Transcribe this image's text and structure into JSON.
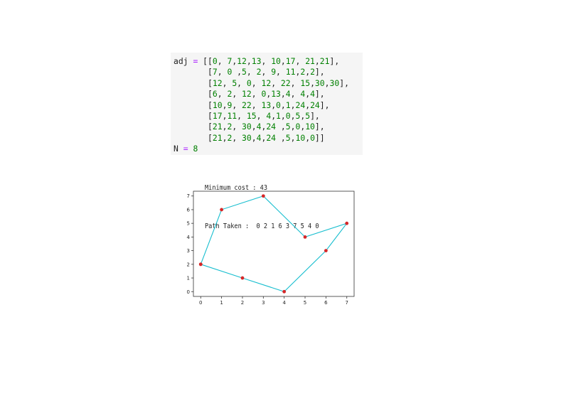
{
  "code": {
    "adj_name": "adj",
    "assign_op": "=",
    "n_name": "N",
    "n_value": "8",
    "matrix_lines": [
      "[[0, 7,12,13, 10,17, 21,21],",
      "[7, 0 ,5, 2, 9, 11,2,2],",
      "[12, 5, 0, 12, 22, 15,30,30],",
      "[6, 2, 12, 0,13,4, 4,4],",
      "[10,9, 22, 13,0,1,24,24],",
      "[17,11, 15, 4,1,0,5,5],",
      "[21,2, 30,4,24 ,5,0,10],",
      "[21,2, 30,4,24 ,5,10,0]]"
    ]
  },
  "output": {
    "min_cost_line": "Minimum cost : 43",
    "path_line": "Path Taken :  0 2 1 6 3 7 5 4 0"
  },
  "chart_data": {
    "type": "line",
    "title": "",
    "xlabel": "",
    "ylabel": "",
    "xlim": [
      -0.35,
      7.35
    ],
    "ylim": [
      -0.35,
      7.35
    ],
    "xticks": [
      0,
      1,
      2,
      3,
      4,
      5,
      6,
      7
    ],
    "yticks": [
      0,
      1,
      2,
      3,
      4,
      5,
      6,
      7
    ],
    "grid": false,
    "line_color": "#17becf",
    "marker_color": "#d62728",
    "x": [
      0,
      1,
      3,
      5,
      7,
      6,
      4,
      2,
      0
    ],
    "y": [
      2,
      6,
      7,
      4,
      5,
      3,
      0,
      1,
      2
    ]
  }
}
